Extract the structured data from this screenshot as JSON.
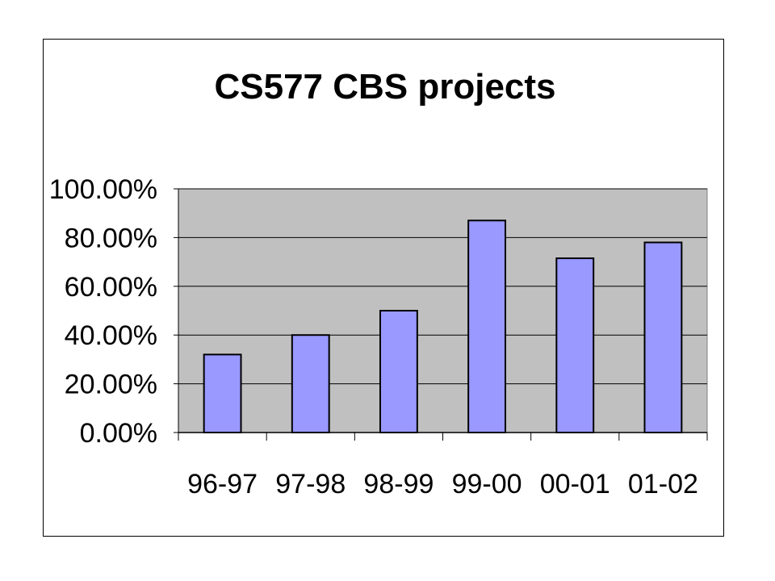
{
  "chart_data": {
    "type": "bar",
    "title": "CS577 CBS projects",
    "xlabel": "",
    "ylabel": "",
    "categories": [
      "96-97",
      "97-98",
      "98-99",
      "99-00",
      "00-01",
      "01-02"
    ],
    "values": [
      0.32,
      0.4,
      0.5,
      0.87,
      0.715,
      0.78
    ],
    "ylim": [
      0,
      1.0
    ],
    "yticks": [
      0,
      0.2,
      0.4,
      0.6,
      0.8,
      1.0
    ],
    "ytick_labels": [
      "0.00%",
      "20.00%",
      "40.00%",
      "60.00%",
      "80.00%",
      "100.00%"
    ],
    "grid": true,
    "legend": "none",
    "colors": {
      "bar_fill": "#9999ff",
      "bar_stroke": "#000000",
      "plot_background": "#c0c0c0",
      "gridline": "#000000"
    }
  }
}
